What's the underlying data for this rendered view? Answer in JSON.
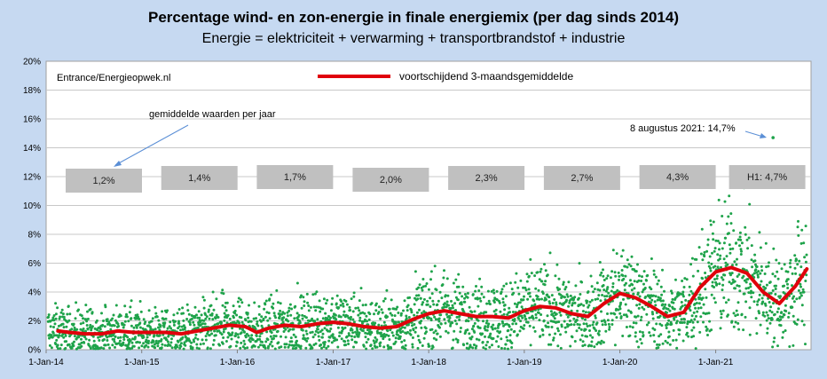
{
  "chart_data": {
    "type": "line+scatter",
    "title": "Percentage wind- en zon-energie in finale energiemix (per dag sinds 2014)",
    "subtitle": "Energie = elektriciteit + verwarming + transportbrandstof + industrie",
    "source": "Entrance/Energieopwek.nl",
    "y_ticks": [
      "0%",
      "2%",
      "4%",
      "6%",
      "8%",
      "10%",
      "12%",
      "14%",
      "16%",
      "18%",
      "20%"
    ],
    "ylim": [
      0,
      20
    ],
    "x_ticks": [
      "1-Jan-14",
      "1-Jan-15",
      "1-Jan-16",
      "1-Jan-17",
      "1-Jan-18",
      "1-Jan-19",
      "1-Jan-20",
      "1-Jan-21"
    ],
    "xlim": [
      "2014-01-01",
      "2021-12-31"
    ],
    "grid": true,
    "legend": "top-center",
    "series": [
      {
        "name": "voortschijdend 3-maandsgemiddelde",
        "type": "line",
        "color": "#e0000b",
        "points": [
          [
            "2014-02-15",
            1.3
          ],
          [
            "2014-04-01",
            1.2
          ],
          [
            "2014-06-01",
            1.1
          ],
          [
            "2014-08-01",
            1.1
          ],
          [
            "2014-10-01",
            1.3
          ],
          [
            "2014-12-01",
            1.2
          ],
          [
            "2015-02-01",
            1.2
          ],
          [
            "2015-04-01",
            1.2
          ],
          [
            "2015-06-01",
            1.1
          ],
          [
            "2015-08-01",
            1.3
          ],
          [
            "2015-10-01",
            1.5
          ],
          [
            "2015-12-01",
            1.7
          ],
          [
            "2016-02-01",
            1.6
          ],
          [
            "2016-03-15",
            1.2
          ],
          [
            "2016-05-01",
            1.5
          ],
          [
            "2016-07-01",
            1.7
          ],
          [
            "2016-09-01",
            1.6
          ],
          [
            "2016-11-01",
            1.8
          ],
          [
            "2017-01-01",
            1.9
          ],
          [
            "2017-03-01",
            1.8
          ],
          [
            "2017-05-01",
            1.6
          ],
          [
            "2017-07-01",
            1.5
          ],
          [
            "2017-09-01",
            1.6
          ],
          [
            "2017-11-01",
            2.1
          ],
          [
            "2018-01-01",
            2.5
          ],
          [
            "2018-03-01",
            2.7
          ],
          [
            "2018-05-01",
            2.5
          ],
          [
            "2018-07-01",
            2.3
          ],
          [
            "2018-09-01",
            2.3
          ],
          [
            "2018-11-01",
            2.2
          ],
          [
            "2019-01-01",
            2.7
          ],
          [
            "2019-03-01",
            3.0
          ],
          [
            "2019-05-01",
            2.9
          ],
          [
            "2019-07-01",
            2.5
          ],
          [
            "2019-09-01",
            2.3
          ],
          [
            "2019-11-01",
            3.2
          ],
          [
            "2020-01-01",
            3.9
          ],
          [
            "2020-03-01",
            3.6
          ],
          [
            "2020-05-01",
            3.0
          ],
          [
            "2020-07-01",
            2.3
          ],
          [
            "2020-09-01",
            2.6
          ],
          [
            "2020-11-01",
            4.3
          ],
          [
            "2021-01-01",
            5.4
          ],
          [
            "2021-03-01",
            5.7
          ],
          [
            "2021-05-01",
            5.3
          ],
          [
            "2021-07-01",
            4.0
          ],
          [
            "2021-09-01",
            3.2
          ],
          [
            "2021-11-01",
            4.4
          ],
          [
            "2021-12-15",
            5.6
          ]
        ]
      },
      {
        "name": "daily values",
        "type": "scatter",
        "color": "#1ea34a"
      }
    ],
    "annual_averages": [
      {
        "label": "1,2%",
        "value": 1.2,
        "year_from": "2014-01-01",
        "year_to": "2015-01-01"
      },
      {
        "label": "1,4%",
        "value": 1.4,
        "year_from": "2015-01-01",
        "year_to": "2016-01-01"
      },
      {
        "label": "1,7%",
        "value": 1.7,
        "year_from": "2016-01-01",
        "year_to": "2017-01-01"
      },
      {
        "label": "2,0%",
        "value": 2.0,
        "year_from": "2017-01-01",
        "year_to": "2018-01-01"
      },
      {
        "label": "2,3%",
        "value": 2.3,
        "year_from": "2018-01-01",
        "year_to": "2019-01-01"
      },
      {
        "label": "2,7%",
        "value": 2.7,
        "year_from": "2019-01-01",
        "year_to": "2020-01-01"
      },
      {
        "label": "4,3%",
        "value": 4.3,
        "year_from": "2020-01-01",
        "year_to": "2021-01-01"
      },
      {
        "label": "H1: 4,7%",
        "value": 4.7,
        "year_from": "2021-01-01",
        "year_to": "2021-07-01"
      }
    ],
    "annotations": [
      {
        "text": "gemiddelde waarden per jaar",
        "target": "annual_averages"
      },
      {
        "text": "8 augustus 2021: 14,7%",
        "date": "2021-08-08",
        "value": 14.7
      }
    ]
  }
}
